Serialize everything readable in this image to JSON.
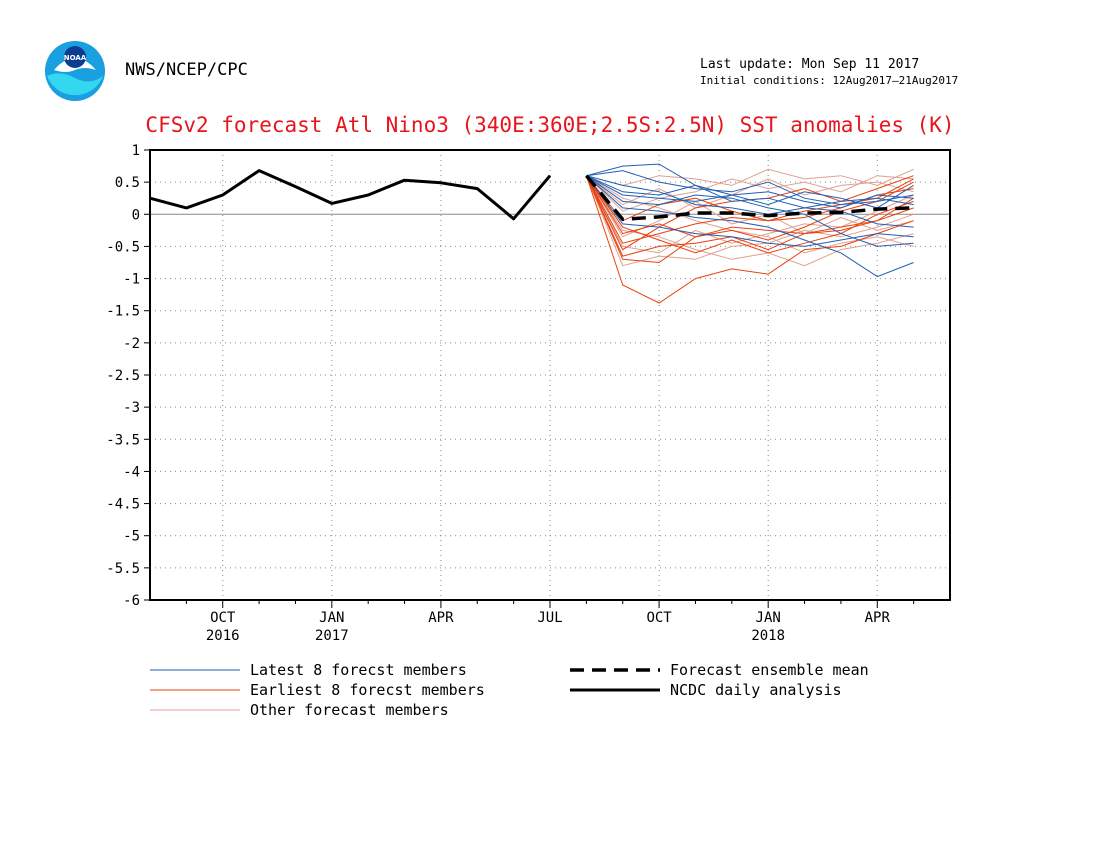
{
  "header": {
    "agency": "NWS/NCEP/CPC",
    "last_update": "Last update: Mon Sep 11 2017",
    "initial_conditions": "Initial conditions: 12Aug2017–21Aug2017",
    "logo_icon": "noaa-logo-icon"
  },
  "chart_data": {
    "type": "line",
    "title": "CFSv2 forecast Atl Nino3 (340E:360E;2.5S:2.5N) SST anomalies (K)",
    "xlabel": "",
    "ylabel": "",
    "ylim": [
      -6,
      1
    ],
    "yticks": [
      1,
      0.5,
      0,
      -0.5,
      -1,
      -1.5,
      -2,
      -2.5,
      -3,
      -3.5,
      -4,
      -4.5,
      -5,
      -5.5,
      -6
    ],
    "ytick_labels": [
      "1",
      "0.5",
      "0",
      "-0.5",
      "-1",
      "-1.5",
      "-2",
      "-2.5",
      "-3",
      "-3.5",
      "-4",
      "-4.5",
      "-5",
      "-5.5",
      "-6"
    ],
    "xlim": [
      "2016-08-15",
      "2018-06-15"
    ],
    "xticks": [
      {
        "date": "2016-10-15",
        "label": "OCT",
        "year": "2016"
      },
      {
        "date": "2017-01-15",
        "label": "JAN",
        "year": "2017"
      },
      {
        "date": "2017-04-15",
        "label": "APR",
        "year": ""
      },
      {
        "date": "2017-07-15",
        "label": "JUL",
        "year": ""
      },
      {
        "date": "2017-10-15",
        "label": "OCT",
        "year": ""
      },
      {
        "date": "2018-01-15",
        "label": "JAN",
        "year": "2018"
      },
      {
        "date": "2018-04-15",
        "label": "APR",
        "year": ""
      }
    ],
    "minor_ticks": [
      "2016-09-15",
      "2016-11-15",
      "2016-12-15",
      "2017-02-15",
      "2017-03-15",
      "2017-05-15",
      "2017-06-15",
      "2017-08-15",
      "2017-09-15",
      "2017-11-15",
      "2017-12-15",
      "2018-02-15",
      "2018-03-15",
      "2018-05-15"
    ],
    "grid": true,
    "zero_line": true,
    "colors": {
      "latest": "#1f5fb4",
      "earliest": "#e8420e",
      "other": "#e0a090",
      "title": "#e8141c"
    },
    "legend": [
      {
        "label": "Latest 8 forecst members",
        "style": "latest"
      },
      {
        "label": "Earliest 8 forecst members",
        "style": "earliest"
      },
      {
        "label": "Other forecast members",
        "style": "other"
      },
      {
        "label": "Forecast ensemble mean",
        "style": "mean"
      },
      {
        "label": "NCDC daily analysis",
        "style": "analysis"
      }
    ],
    "series": [
      {
        "name": "NCDC daily analysis",
        "style": "analysis",
        "x": [
          "2016-08-15",
          "2016-09-15",
          "2016-10-15",
          "2016-11-15",
          "2016-12-15",
          "2017-01-15",
          "2017-02-15",
          "2017-03-15",
          "2017-04-15",
          "2017-05-15",
          "2017-06-15",
          "2017-07-15",
          "2017-08-15"
        ],
        "values": [
          0.25,
          0.1,
          0.3,
          0.68,
          0.43,
          0.17,
          0.3,
          0.53,
          0.49,
          0.4,
          -0.07,
          0.6,
          null
        ]
      },
      {
        "name": "Forecast ensemble mean",
        "style": "mean",
        "x": [
          "2017-08-15",
          "2017-09-15",
          "2017-10-15",
          "2017-11-15",
          "2017-12-15",
          "2018-01-15",
          "2018-02-15",
          "2018-03-15",
          "2018-04-15",
          "2018-05-15"
        ],
        "values": [
          0.6,
          -0.08,
          -0.04,
          0.02,
          0.02,
          -0.02,
          0.02,
          0.03,
          0.08,
          0.1
        ]
      }
    ],
    "members_x": [
      "2017-08-15",
      "2017-09-15",
      "2017-10-15",
      "2017-11-15",
      "2017-12-15",
      "2018-01-15",
      "2018-02-15",
      "2018-03-15",
      "2018-04-15",
      "2018-05-15"
    ],
    "members": [
      {
        "style": "latest",
        "values": [
          0.6,
          0.75,
          0.78,
          0.45,
          0.3,
          0.35,
          0.2,
          0.1,
          0.3,
          0.25
        ]
      },
      {
        "style": "latest",
        "values": [
          0.6,
          0.68,
          0.5,
          0.4,
          0.35,
          0.5,
          0.25,
          0.15,
          0.2,
          0.3
        ]
      },
      {
        "style": "latest",
        "values": [
          0.6,
          0.35,
          0.3,
          0.45,
          0.2,
          0.25,
          0.1,
          0.05,
          -0.15,
          -0.2
        ]
      },
      {
        "style": "latest",
        "values": [
          0.6,
          0.2,
          0.15,
          0.3,
          0.25,
          0.1,
          0.0,
          -0.3,
          -0.5,
          -0.45
        ]
      },
      {
        "style": "latest",
        "values": [
          0.6,
          0.1,
          0.05,
          -0.05,
          -0.1,
          -0.2,
          -0.4,
          -0.6,
          -0.97,
          -0.75
        ]
      },
      {
        "style": "latest",
        "values": [
          0.6,
          0.3,
          0.25,
          0.2,
          0.3,
          0.15,
          0.35,
          0.25,
          0.1,
          0.45
        ]
      },
      {
        "style": "latest",
        "values": [
          0.6,
          -0.15,
          -0.2,
          -0.3,
          -0.35,
          -0.45,
          -0.5,
          -0.4,
          -0.3,
          -0.35
        ]
      },
      {
        "style": "latest",
        "values": [
          0.6,
          0.45,
          0.35,
          0.15,
          0.1,
          0.0,
          0.1,
          0.2,
          0.25,
          0.15
        ]
      },
      {
        "style": "earliest",
        "values": [
          0.6,
          -1.1,
          -1.38,
          -1.0,
          -0.85,
          -0.93,
          -0.55,
          -0.5,
          -0.3,
          -0.1
        ]
      },
      {
        "style": "earliest",
        "values": [
          0.6,
          -0.65,
          -0.5,
          -0.45,
          -0.35,
          -0.55,
          -0.3,
          -0.25,
          -0.1,
          0.1
        ]
      },
      {
        "style": "earliest",
        "values": [
          0.6,
          -0.7,
          -0.75,
          -0.35,
          -0.2,
          -0.25,
          -0.3,
          -0.2,
          -0.1,
          0.25
        ]
      },
      {
        "style": "earliest",
        "values": [
          0.6,
          -0.45,
          -0.3,
          -0.15,
          -0.05,
          -0.1,
          0.05,
          0.15,
          0.25,
          0.55
        ]
      },
      {
        "style": "earliest",
        "values": [
          0.6,
          -0.55,
          -0.2,
          0.1,
          0.2,
          0.25,
          0.4,
          0.2,
          0.4,
          0.6
        ]
      },
      {
        "style": "earliest",
        "values": [
          0.6,
          -0.3,
          -0.15,
          -0.35,
          -0.25,
          -0.4,
          -0.2,
          0.05,
          0.2,
          0.5
        ]
      },
      {
        "style": "earliest",
        "values": [
          0.6,
          -0.2,
          -0.4,
          -0.6,
          -0.4,
          -0.6,
          -0.45,
          -0.3,
          0.0,
          0.2
        ]
      },
      {
        "style": "earliest",
        "values": [
          0.6,
          -0.1,
          0.15,
          0.25,
          0.05,
          -0.1,
          -0.05,
          0.1,
          0.3,
          0.4
        ]
      },
      {
        "style": "other",
        "values": [
          0.6,
          0.45,
          0.6,
          0.55,
          0.45,
          0.7,
          0.55,
          0.6,
          0.45,
          0.7
        ]
      },
      {
        "style": "other",
        "values": [
          0.6,
          0.25,
          0.1,
          -0.1,
          -0.25,
          -0.35,
          -0.6,
          -0.45,
          -0.35,
          -0.5
        ]
      },
      {
        "style": "other",
        "values": [
          0.6,
          -0.25,
          -0.35,
          -0.55,
          -0.7,
          -0.6,
          -0.8,
          -0.55,
          -0.45,
          -0.3
        ]
      },
      {
        "style": "other",
        "values": [
          0.6,
          0.05,
          0.25,
          0.35,
          0.55,
          0.4,
          0.5,
          0.35,
          0.6,
          0.55
        ]
      },
      {
        "style": "other",
        "values": [
          0.6,
          -0.5,
          -0.6,
          -0.25,
          -0.45,
          -0.3,
          -0.15,
          -0.2,
          0.05,
          0.3
        ]
      },
      {
        "style": "other",
        "values": [
          0.6,
          -0.8,
          -0.65,
          -0.7,
          -0.5,
          -0.45,
          -0.25,
          -0.35,
          -0.2,
          0.0
        ]
      },
      {
        "style": "other",
        "values": [
          0.6,
          0.15,
          0.4,
          0.1,
          0.3,
          0.55,
          0.3,
          0.45,
          0.5,
          0.35
        ]
      },
      {
        "style": "other",
        "values": [
          0.6,
          -0.35,
          -0.1,
          0.2,
          -0.15,
          0.0,
          -0.3,
          -0.05,
          -0.25,
          -0.1
        ]
      }
    ]
  }
}
